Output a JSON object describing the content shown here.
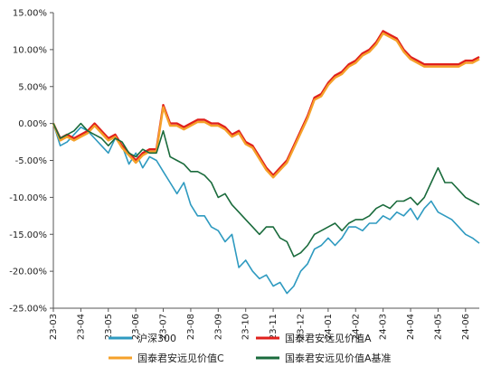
{
  "chart_data": {
    "type": "line",
    "title": "",
    "xlabel": "",
    "ylabel": "",
    "ylim": [
      -25,
      15
    ],
    "ytick_values": [
      15,
      10,
      5,
      0,
      -5,
      -10,
      -15,
      -20,
      -25
    ],
    "ytick_labels": [
      "15.00%",
      "10.00%",
      "5.00%",
      "0.00%",
      "-5.00%",
      "-10.00%",
      "-15.00%",
      "-20.00%",
      "-25.00%"
    ],
    "x_tick_labels": [
      "23-03",
      "23-04",
      "23-05",
      "23-06",
      "23-07",
      "23-08",
      "23-09",
      "23-10",
      "23-11",
      "23-12",
      "24-01",
      "24-02",
      "24-03",
      "24-04",
      "24-05",
      "24-06"
    ],
    "grid": false,
    "legend_position": "bottom",
    "x": [
      0,
      0.25,
      0.5,
      0.75,
      1,
      1.25,
      1.5,
      1.75,
      2,
      2.25,
      2.5,
      2.75,
      3,
      3.25,
      3.5,
      3.75,
      4,
      4.25,
      4.5,
      4.75,
      5,
      5.25,
      5.5,
      5.75,
      6,
      6.25,
      6.5,
      6.75,
      7,
      7.25,
      7.5,
      7.75,
      8,
      8.25,
      8.5,
      8.75,
      9,
      9.25,
      9.5,
      9.75,
      10,
      10.25,
      10.5,
      10.75,
      11,
      11.25,
      11.5,
      11.75,
      12,
      12.25,
      12.5,
      12.75,
      13,
      13.25,
      13.5,
      13.75,
      14,
      14.25,
      14.5,
      14.75,
      15,
      15.25,
      15.5
    ],
    "series": [
      {
        "name": "沪深300",
        "color": "#2e9ac0",
        "values": [
          0,
          -3,
          -2.5,
          -1.5,
          -0.5,
          -1,
          -2,
          -3,
          -4,
          -2,
          -3,
          -5.5,
          -4,
          -6,
          -4.5,
          -5,
          -6.5,
          -8,
          -9.5,
          -8,
          -11,
          -12.5,
          -12.5,
          -14,
          -14.5,
          -16,
          -15,
          -19.5,
          -18.5,
          -20,
          -21,
          -20.5,
          -22,
          -21.5,
          -23,
          -22,
          -20,
          -19,
          -17,
          -16.5,
          -15.5,
          -16.5,
          -15.5,
          -14,
          -14,
          -14.5,
          -13.5,
          -13.5,
          -12.5,
          -13,
          -12,
          -12.5,
          -11.5,
          -13,
          -11.5,
          -10.5,
          -12,
          -12.5,
          -13,
          -14,
          -15,
          -15.5,
          -16.2
        ]
      },
      {
        "name": "国泰君安远见价值A",
        "color": "#e0201c",
        "values": [
          0,
          -2,
          -1.5,
          -2,
          -1.5,
          -1,
          0,
          -1,
          -2,
          -1.5,
          -3,
          -4,
          -5,
          -4,
          -3.5,
          -3.5,
          2.5,
          0,
          0,
          -0.5,
          0,
          0.5,
          0.5,
          0,
          0,
          -0.5,
          -1.5,
          -1,
          -2.5,
          -3,
          -4.5,
          -6,
          -7,
          -6,
          -5,
          -3,
          -1,
          1,
          3.5,
          4,
          5.5,
          6.5,
          7,
          8,
          8.5,
          9.5,
          10,
          11,
          12.5,
          12,
          11.5,
          10,
          9,
          8.5,
          8,
          8,
          8,
          8,
          8,
          8,
          8.5,
          8.5,
          9
        ]
      },
      {
        "name": "国泰君安远见价值C",
        "color": "#f5a12a",
        "values": [
          0,
          -2.3,
          -1.8,
          -2.3,
          -1.8,
          -1.3,
          -0.3,
          -1.3,
          -2.3,
          -1.8,
          -3.3,
          -4.3,
          -5.3,
          -4.3,
          -3.8,
          -3.8,
          2.2,
          -0.3,
          -0.3,
          -0.8,
          -0.3,
          0.2,
          0.2,
          -0.3,
          -0.3,
          -0.8,
          -1.8,
          -1.3,
          -2.8,
          -3.3,
          -4.8,
          -6.3,
          -7.3,
          -6.3,
          -5.3,
          -3.3,
          -1.3,
          0.7,
          3.2,
          3.7,
          5.2,
          6.2,
          6.7,
          7.7,
          8.2,
          9.2,
          9.7,
          10.7,
          12.2,
          11.7,
          11.2,
          9.7,
          8.7,
          8.2,
          7.7,
          7.7,
          7.7,
          7.7,
          7.7,
          7.7,
          8.2,
          8.2,
          8.7
        ]
      },
      {
        "name": "国泰君安远见价值A基准",
        "color": "#1a6b3c",
        "values": [
          0,
          -2,
          -1.5,
          -1,
          0,
          -1,
          -1.5,
          -2,
          -3,
          -2,
          -2.5,
          -4,
          -4.5,
          -3.5,
          -4,
          -4,
          -1,
          -4.5,
          -5,
          -5.5,
          -6.5,
          -6.5,
          -7,
          -8,
          -10,
          -9.5,
          -11,
          -12,
          -13,
          -14,
          -15,
          -14,
          -14,
          -15.5,
          -16,
          -18,
          -17.5,
          -16.5,
          -15,
          -14.5,
          -14,
          -13.5,
          -14.5,
          -13.5,
          -13,
          -13,
          -12.5,
          -11.5,
          -11,
          -11.5,
          -10.5,
          -10.5,
          -10,
          -11,
          -10,
          -8,
          -6,
          -8,
          -8,
          -9,
          -10,
          -10.5,
          -11
        ]
      }
    ]
  }
}
